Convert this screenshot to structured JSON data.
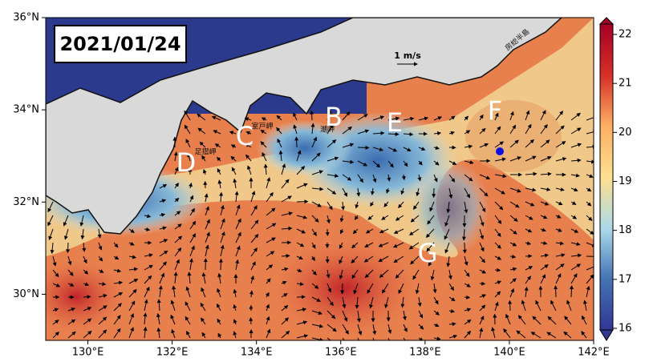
{
  "date": "2021/01/24",
  "scale_label": "1 m/s",
  "regions": [
    "B",
    "C",
    "D",
    "E",
    "F",
    "G"
  ],
  "places": [
    "室戸岬",
    "足摺岬",
    "潮岬",
    "房総半島"
  ],
  "map": {
    "xlim": [
      129,
      142
    ],
    "ylim": [
      29,
      36
    ],
    "xticks": [
      {
        "value": 130,
        "label": "130°E"
      },
      {
        "value": 132,
        "label": "132°E"
      },
      {
        "value": 134,
        "label": "134°E"
      },
      {
        "value": 136,
        "label": "136°E"
      },
      {
        "value": 138,
        "label": "138°E"
      },
      {
        "value": 140,
        "label": "140°E"
      },
      {
        "value": 142,
        "label": "142°E"
      }
    ],
    "yticks": [
      {
        "value": 30,
        "label": "30°N"
      },
      {
        "value": 32,
        "label": "32°N"
      },
      {
        "value": 34,
        "label": "34°N"
      },
      {
        "value": 36,
        "label": "36°N"
      }
    ]
  },
  "colorbar": {
    "lim": [
      16,
      22
    ],
    "ticks": [
      16,
      17,
      18,
      19,
      20,
      21,
      22
    ]
  }
}
